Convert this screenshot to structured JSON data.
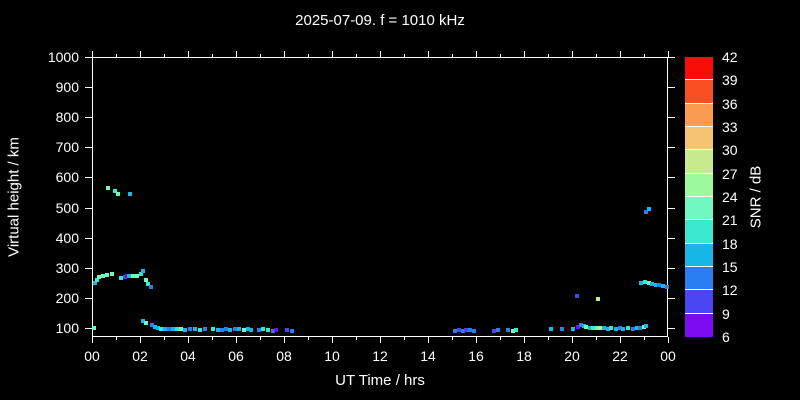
{
  "chart_data": {
    "type": "scatter",
    "title": "2025-07-09. f = 1010 kHz",
    "xlabel": "UT Time / hrs",
    "ylabel": "Virtual height / km",
    "xlim": [
      0,
      24
    ],
    "ylim": [
      70,
      1000
    ],
    "x_major_tick_hours": [
      0,
      2,
      4,
      6,
      8,
      10,
      12,
      14,
      16,
      18,
      20,
      22,
      24
    ],
    "x_tick_labels": [
      "00",
      "02",
      "04",
      "06",
      "08",
      "10",
      "12",
      "14",
      "16",
      "18",
      "20",
      "22",
      "00"
    ],
    "x_minor_tick_hours": [
      1,
      3,
      5,
      7,
      9,
      11,
      13,
      15,
      17,
      19,
      21,
      23
    ],
    "y_tick_km": [
      100,
      200,
      300,
      400,
      500,
      600,
      700,
      800,
      900,
      1000
    ],
    "y_tick_labels": [
      "100",
      "200",
      "300",
      "400",
      "500",
      "600",
      "700",
      "800",
      "900",
      "1000"
    ],
    "background_color": "#000000",
    "axis_color": "#ffffff",
    "grid": false,
    "legend_position": "none",
    "colorbar": {
      "label": "SNR / dB",
      "tick_values": [
        42,
        39,
        36,
        33,
        30,
        27,
        24,
        21,
        18,
        15,
        12,
        9,
        6
      ],
      "segments": [
        {
          "min": 39,
          "max": 42,
          "color": "#fb0d07"
        },
        {
          "min": 36,
          "max": 39,
          "color": "#f94f22"
        },
        {
          "min": 33,
          "max": 36,
          "color": "#fb9b52"
        },
        {
          "min": 30,
          "max": 33,
          "color": "#f4c472"
        },
        {
          "min": 27,
          "max": 30,
          "color": "#c6ea8e"
        },
        {
          "min": 24,
          "max": 27,
          "color": "#9cfa9c"
        },
        {
          "min": 21,
          "max": 24,
          "color": "#70f8c0"
        },
        {
          "min": 18,
          "max": 21,
          "color": "#38e8cf"
        },
        {
          "min": 15,
          "max": 18,
          "color": "#17b8e8"
        },
        {
          "min": 12,
          "max": 15,
          "color": "#2a7ef2"
        },
        {
          "min": 9,
          "max": 12,
          "color": "#4a46f2"
        },
        {
          "min": 6,
          "max": 9,
          "color": "#7c0bf2"
        }
      ]
    },
    "points_format": [
      "ut_hour",
      "virtual_height_km",
      "snr_db"
    ],
    "points": [
      [
        0.07,
        253,
        16
      ],
      [
        0.15,
        261,
        19
      ],
      [
        0.27,
        271,
        22
      ],
      [
        0.42,
        276,
        22
      ],
      [
        0.6,
        280,
        22
      ],
      [
        0.78,
        283,
        22
      ],
      [
        1.15,
        270,
        19
      ],
      [
        1.32,
        272,
        10
      ],
      [
        1.42,
        275,
        8
      ],
      [
        1.52,
        277,
        16
      ],
      [
        1.68,
        276,
        22
      ],
      [
        1.84,
        277,
        23
      ],
      [
        1.98,
        282,
        19
      ],
      [
        2.07,
        291,
        16
      ],
      [
        2.2,
        262,
        22
      ],
      [
        2.3,
        248,
        19
      ],
      [
        2.4,
        240,
        13
      ],
      [
        0.62,
        568,
        22
      ],
      [
        0.9,
        558,
        20
      ],
      [
        1.05,
        548,
        23
      ],
      [
        1.55,
        548,
        16
      ],
      [
        0.05,
        103,
        21
      ],
      [
        2.1,
        128,
        16
      ],
      [
        2.2,
        121,
        22
      ],
      [
        2.45,
        114,
        13
      ],
      [
        2.58,
        107,
        16
      ],
      [
        2.72,
        103,
        16
      ],
      [
        2.85,
        100,
        19
      ],
      [
        3.0,
        99,
        16
      ],
      [
        3.15,
        101,
        13
      ],
      [
        3.32,
        99,
        16
      ],
      [
        3.5,
        101,
        19
      ],
      [
        3.68,
        99,
        22
      ],
      [
        3.85,
        98,
        16
      ],
      [
        4.05,
        100,
        13
      ],
      [
        4.25,
        99,
        16
      ],
      [
        4.45,
        97,
        19
      ],
      [
        4.65,
        99,
        13
      ],
      [
        5.0,
        100,
        19
      ],
      [
        5.2,
        98,
        16
      ],
      [
        5.38,
        95,
        13
      ],
      [
        5.55,
        99,
        13
      ],
      [
        5.72,
        97,
        16
      ],
      [
        5.9,
        99,
        13
      ],
      [
        6.1,
        99,
        16
      ],
      [
        6.28,
        97,
        22
      ],
      [
        6.45,
        99,
        16
      ],
      [
        6.6,
        97,
        16
      ],
      [
        6.9,
        97,
        13
      ],
      [
        7.1,
        99,
        19
      ],
      [
        7.28,
        97,
        19
      ],
      [
        7.5,
        94,
        13
      ],
      [
        7.62,
        97,
        7
      ],
      [
        8.1,
        97,
        10
      ],
      [
        8.28,
        94,
        13
      ],
      [
        15.1,
        94,
        13
      ],
      [
        15.25,
        97,
        10
      ],
      [
        15.4,
        94,
        13
      ],
      [
        15.55,
        97,
        10
      ],
      [
        15.72,
        97,
        13
      ],
      [
        15.88,
        94,
        13
      ],
      [
        16.7,
        94,
        10
      ],
      [
        16.88,
        97,
        13
      ],
      [
        17.3,
        97,
        13
      ],
      [
        17.48,
        94,
        22
      ],
      [
        17.62,
        97,
        19
      ],
      [
        19.1,
        99,
        16
      ],
      [
        19.55,
        99,
        13
      ],
      [
        20.0,
        101,
        16
      ],
      [
        20.2,
        107,
        7
      ],
      [
        20.32,
        114,
        13
      ],
      [
        20.45,
        111,
        16
      ],
      [
        20.55,
        107,
        22
      ],
      [
        20.7,
        104,
        16
      ],
      [
        20.85,
        102,
        19
      ],
      [
        21.0,
        102,
        22
      ],
      [
        21.15,
        104,
        27
      ],
      [
        21.3,
        102,
        16
      ],
      [
        21.45,
        100,
        16
      ],
      [
        21.6,
        102,
        19
      ],
      [
        21.8,
        100,
        16
      ],
      [
        21.95,
        102,
        13
      ],
      [
        22.1,
        100,
        16
      ],
      [
        22.3,
        102,
        19
      ],
      [
        22.5,
        100,
        13
      ],
      [
        22.65,
        102,
        16
      ],
      [
        22.8,
        104,
        13
      ],
      [
        22.95,
        107,
        22
      ],
      [
        23.05,
        111,
        16
      ],
      [
        20.15,
        210,
        10
      ],
      [
        21.05,
        200,
        28
      ],
      [
        23.05,
        490,
        13
      ],
      [
        23.17,
        497,
        16
      ],
      [
        22.85,
        252,
        16
      ],
      [
        23.0,
        255,
        19
      ],
      [
        23.15,
        252,
        22
      ],
      [
        23.3,
        250,
        16
      ],
      [
        23.45,
        247,
        16
      ],
      [
        23.6,
        245,
        13
      ],
      [
        23.75,
        242,
        16
      ],
      [
        23.9,
        240,
        13
      ]
    ]
  }
}
